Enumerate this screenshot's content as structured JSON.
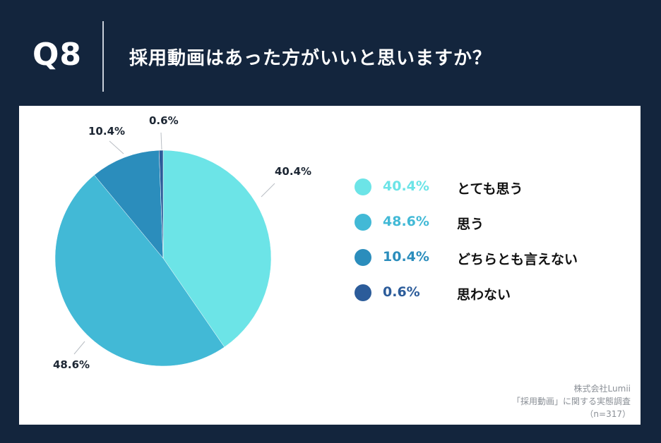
{
  "header": {
    "q_label": "Q8",
    "question": "採用動画はあった方がいいと思いますか？"
  },
  "chart_data": {
    "type": "pie",
    "title": "採用動画はあった方がいいと思いますか？",
    "slices": [
      {
        "label": "とても思う",
        "value": 40.4,
        "display": "40.4%",
        "color": "#6ce4e7"
      },
      {
        "label": "思う",
        "value": 48.6,
        "display": "48.6%",
        "color": "#42b9d6"
      },
      {
        "label": "どちらとも言えない",
        "value": 10.4,
        "display": "10.4%",
        "color": "#2b8dbc"
      },
      {
        "label": "思わない",
        "value": 0.6,
        "display": "0.6%",
        "color": "#2c5c9a"
      }
    ],
    "legend_placement": "right"
  },
  "footnote": {
    "line1": "株式会社Lumii",
    "line2": "「採用動画」に関する実態調査",
    "line3": "（n=317）"
  }
}
